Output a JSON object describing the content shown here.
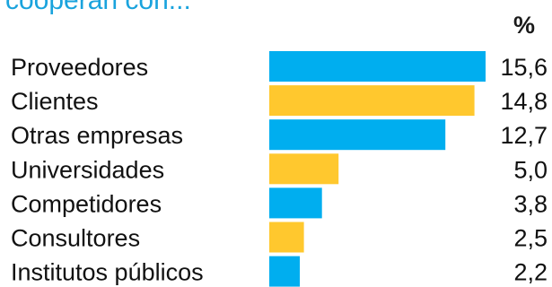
{
  "header": {
    "title": "cooperan con..."
  },
  "chart_data": {
    "type": "bar",
    "orientation": "horizontal",
    "unit": "%",
    "categories": [
      "Proveedores",
      "Clientes",
      "Otras empresas",
      "Universidades",
      "Competidores",
      "Consultores",
      "Institutos públicos"
    ],
    "values": [
      15.6,
      14.8,
      12.7,
      5.0,
      3.8,
      2.5,
      2.2
    ],
    "value_labels": [
      "15,6",
      "14,8",
      "12,7",
      "5,0",
      "3,8",
      "2,5",
      "2,2"
    ],
    "bar_colors": [
      "#00aeef",
      "#ffc82e",
      "#00aeef",
      "#ffc82e",
      "#00aeef",
      "#ffc82e",
      "#00aeef"
    ],
    "xlim": [
      0,
      16
    ]
  }
}
